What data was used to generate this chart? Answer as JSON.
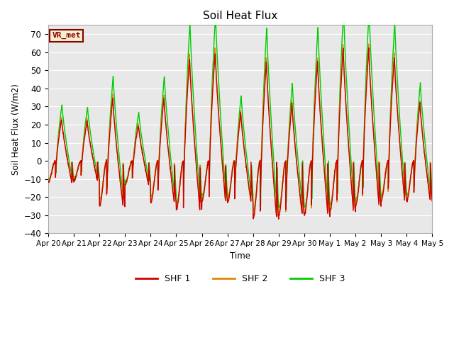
{
  "title": "Soil Heat Flux",
  "ylabel": "Soil Heat Flux (W/m2)",
  "xlabel": "Time",
  "ylim": [
    -40,
    75
  ],
  "yticks": [
    -40,
    -30,
    -20,
    -10,
    0,
    10,
    20,
    30,
    40,
    50,
    60,
    70
  ],
  "colors": {
    "SHF 1": "#cc0000",
    "SHF 2": "#dd8800",
    "SHF 3": "#00cc00"
  },
  "x_tick_labels": [
    "Apr 20",
    "Apr 21",
    "Apr 22",
    "Apr 23",
    "Apr 24",
    "Apr 25",
    "Apr 26",
    "Apr 27",
    "Apr 28",
    "Apr 29",
    "Apr 30",
    "May 1",
    "May 2",
    "May 3",
    "May 4",
    "May 5"
  ],
  "annotation_text": "VR_met",
  "annotation_fg": "#8b0000",
  "annotation_bg": "#f5f0d0",
  "plot_bg": "#e8e8e8",
  "fig_bg": "#ffffff",
  "grid_color": "#ffffff",
  "line_width": 1.0,
  "day_peak_amplitudes": [
    23,
    22,
    35,
    20,
    35,
    57,
    60,
    27,
    55,
    32,
    55,
    62,
    62,
    57,
    32
  ],
  "day_trough_amplitudes": [
    12,
    11,
    25,
    13,
    23,
    27,
    22,
    23,
    32,
    30,
    30,
    28,
    25,
    22,
    22
  ]
}
